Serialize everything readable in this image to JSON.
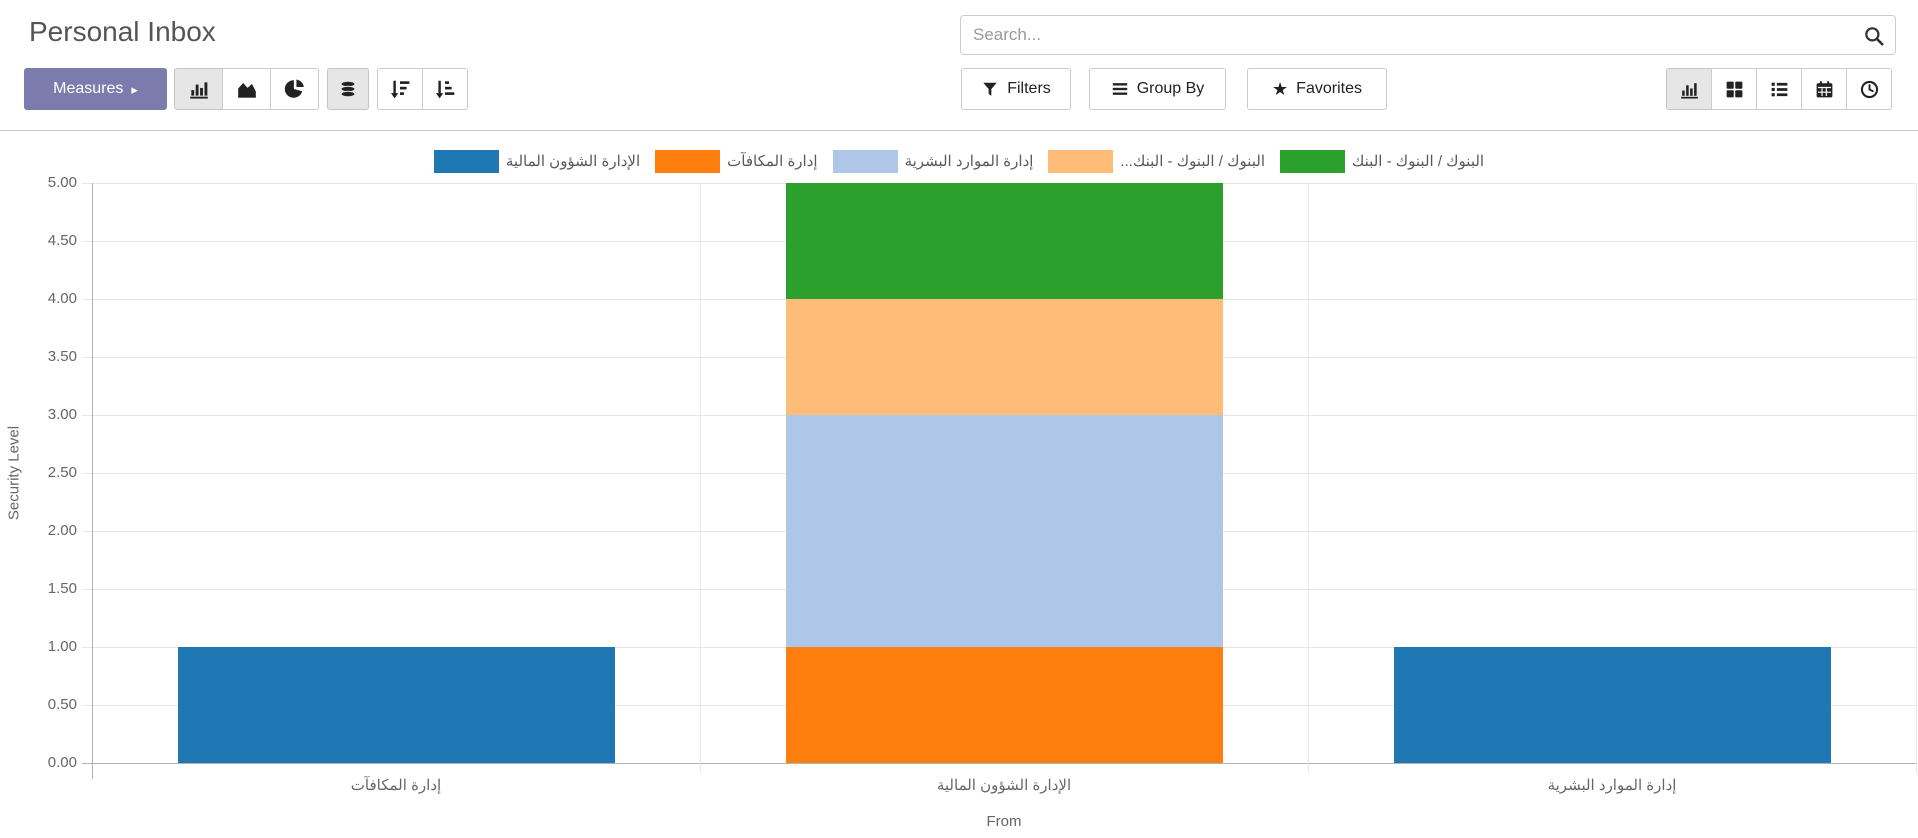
{
  "header": {
    "title": "Personal Inbox",
    "search_placeholder": "Search..."
  },
  "toolbar": {
    "measures_label": "Measures",
    "filters_label": "Filters",
    "group_by_label": "Group By",
    "favorites_label": "Favorites"
  },
  "icons": {
    "measures_caret": "▸",
    "favorites_star": "★",
    "search": "magnifier",
    "chart_type_buttons": [
      "bar-chart",
      "area-chart",
      "pie-chart"
    ],
    "stacked_toggle": "database-stack",
    "sort_buttons": [
      "sort-descending",
      "sort-ascending"
    ],
    "view_switcher": [
      "graph",
      "kanban",
      "list",
      "calendar",
      "activity-clock"
    ]
  },
  "colors": {
    "accent": "#7c7bad",
    "active_button_bg": "#e6e6e6",
    "grid_line": "#e7e7e7",
    "axis_line": "#b2b2b2",
    "text_muted": "#666666"
  },
  "chart_data": {
    "type": "bar",
    "stacked": true,
    "title": "",
    "xlabel": "From",
    "ylabel": "Security Level",
    "ylim": [
      0,
      5
    ],
    "ytick_step": 0.5,
    "yticks": [
      "5.00",
      "4.50",
      "4.00",
      "3.50",
      "3.00",
      "2.50",
      "2.00",
      "1.50",
      "1.00",
      "0.50",
      "0.00"
    ],
    "grid": true,
    "legend_position": "top",
    "categories": [
      "إدارة المكافآت",
      "الإدارة الشؤون المالية",
      "إدارة الموارد البشرية"
    ],
    "series": [
      {
        "name": "الإدارة الشؤون المالية",
        "color": "#1f77b4",
        "values": [
          1,
          0,
          1
        ]
      },
      {
        "name": "إدارة المكافآت",
        "color": "#ff7f0e",
        "values": [
          0,
          1,
          0
        ]
      },
      {
        "name": "إدارة الموارد البشرية",
        "color": "#aec7e8",
        "values": [
          0,
          2,
          0
        ]
      },
      {
        "name": "...البنوك / البنوك - البنك",
        "color": "#ffbb78",
        "values": [
          0,
          1,
          0
        ]
      },
      {
        "name": "البنوك / البنوك - البنك",
        "color": "#2ca02c",
        "values": [
          0,
          1,
          0
        ]
      }
    ]
  }
}
